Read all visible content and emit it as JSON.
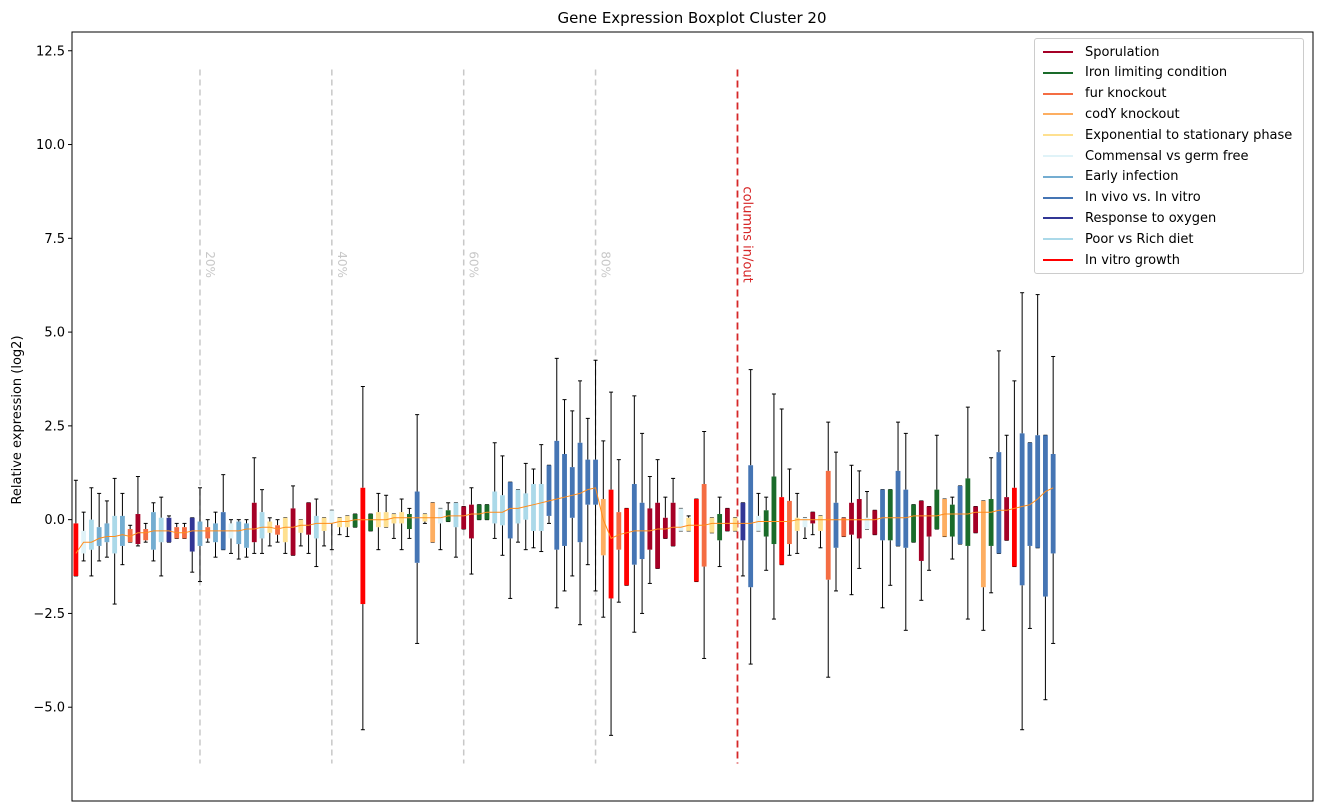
{
  "chart_data": {
    "type": "boxplot",
    "title": "Gene Expression Boxplot Cluster 20",
    "ylabel": "Relative expression (log2)",
    "xlabel": "",
    "ylim": [
      -7.5,
      13.0
    ],
    "yticks": [
      -5.0,
      -2.5,
      0.0,
      2.5,
      5.0,
      7.5,
      10.0,
      12.5
    ],
    "ytick_labels": [
      "−5.0",
      "−2.5",
      "0.0",
      "2.5",
      "5.0",
      "7.5",
      "10.0",
      "12.5"
    ],
    "num_columns": 160,
    "percentile_markers": [
      {
        "label": "20%",
        "column": 16.5
      },
      {
        "label": "40%",
        "column": 33.5
      },
      {
        "label": "60%",
        "column": 50.5
      },
      {
        "label": "80%",
        "column": 67.5
      }
    ],
    "inout_marker": {
      "label": "columns in/out",
      "column": 85.8
    },
    "marker_y_range": [
      -6.5,
      12.0
    ],
    "legend": [
      {
        "label": "Sporulation",
        "color": "#a50026"
      },
      {
        "label": "Iron limiting condition",
        "color": "#1a6b2a"
      },
      {
        "label": "fur knockout",
        "color": "#f46d43"
      },
      {
        "label": "codY knockout",
        "color": "#fdae61"
      },
      {
        "label": "Exponential to stationary phase",
        "color": "#fee090"
      },
      {
        "label": "Commensal vs germ free",
        "color": "#e0f3f8"
      },
      {
        "label": "Early infection",
        "color": "#74add1"
      },
      {
        "label": "In vivo vs. In vitro",
        "color": "#4575b4"
      },
      {
        "label": "Response to oxygen",
        "color": "#313695"
      },
      {
        "label": "Poor vs Rich diet",
        "color": "#abd9e9"
      },
      {
        "label": "In vitro growth",
        "color": "#ff0000"
      }
    ],
    "median_line_color": "#ff8c1a",
    "boxes": [
      {
        "cat": 10,
        "q1": -1.5,
        "q3": -0.1,
        "lo": -1.5,
        "hi": 1.05,
        "med": -0.9
      },
      {
        "cat": 5,
        "q1": -0.9,
        "q3": -0.3,
        "lo": -1.1,
        "hi": 0.2,
        "med": -0.6
      },
      {
        "cat": 9,
        "q1": -0.8,
        "q3": 0.0,
        "lo": -1.5,
        "hi": 0.85,
        "med": -0.6
      },
      {
        "cat": 6,
        "q1": -0.7,
        "q3": -0.2,
        "lo": -1.1,
        "hi": 0.7,
        "med": -0.5
      },
      {
        "cat": 6,
        "q1": -0.6,
        "q3": -0.1,
        "lo": -1.0,
        "hi": 0.5,
        "med": -0.45
      },
      {
        "cat": 9,
        "q1": -0.9,
        "q3": 0.1,
        "lo": -2.25,
        "hi": 1.1,
        "med": -0.45
      },
      {
        "cat": 6,
        "q1": -0.7,
        "q3": 0.1,
        "lo": -1.2,
        "hi": 0.7,
        "med": -0.4
      },
      {
        "cat": 2,
        "q1": -0.6,
        "q3": -0.25,
        "lo": -0.6,
        "hi": -0.15,
        "med": -0.45
      },
      {
        "cat": 0,
        "q1": -0.65,
        "q3": 0.15,
        "lo": -0.7,
        "hi": 1.15,
        "med": -0.35
      },
      {
        "cat": 2,
        "q1": -0.55,
        "q3": -0.25,
        "lo": -0.6,
        "hi": -0.1,
        "med": -0.35
      },
      {
        "cat": 6,
        "q1": -0.8,
        "q3": 0.2,
        "lo": -1.1,
        "hi": 0.45,
        "med": -0.3
      },
      {
        "cat": 9,
        "q1": -0.6,
        "q3": 0.05,
        "lo": -1.5,
        "hi": 0.6,
        "med": -0.3
      },
      {
        "cat": 8,
        "q1": -0.6,
        "q3": 0.05,
        "lo": -0.6,
        "hi": 0.1,
        "med": -0.3
      },
      {
        "cat": 2,
        "q1": -0.5,
        "q3": -0.2,
        "lo": -0.5,
        "hi": -0.1,
        "med": -0.35
      },
      {
        "cat": 2,
        "q1": -0.5,
        "q3": -0.2,
        "lo": -0.5,
        "hi": -0.1,
        "med": -0.35
      },
      {
        "cat": 8,
        "q1": -0.85,
        "q3": 0.05,
        "lo": -1.4,
        "hi": 0.05,
        "med": -0.3
      },
      {
        "cat": 6,
        "q1": -0.7,
        "q3": -0.05,
        "lo": -1.65,
        "hi": 0.85,
        "med": -0.3
      },
      {
        "cat": 2,
        "q1": -0.5,
        "q3": -0.2,
        "lo": -0.6,
        "hi": 0.0,
        "med": -0.3
      },
      {
        "cat": 6,
        "q1": -0.6,
        "q3": -0.1,
        "lo": -1.0,
        "hi": 0.2,
        "med": -0.3
      },
      {
        "cat": 7,
        "q1": -0.8,
        "q3": 0.2,
        "lo": -0.8,
        "hi": 1.2,
        "med": -0.3
      },
      {
        "cat": 5,
        "q1": -0.5,
        "q3": -0.1,
        "lo": -0.9,
        "hi": 0.0,
        "med": -0.3
      },
      {
        "cat": 6,
        "q1": -0.65,
        "q3": -0.05,
        "lo": -1.05,
        "hi": 0.0,
        "med": -0.3
      },
      {
        "cat": 6,
        "q1": -0.75,
        "q3": -0.1,
        "lo": -1.0,
        "hi": 0.0,
        "med": -0.25
      },
      {
        "cat": 0,
        "q1": -0.6,
        "q3": 0.45,
        "lo": -0.9,
        "hi": 1.65,
        "med": -0.25
      },
      {
        "cat": 9,
        "q1": -0.5,
        "q3": 0.2,
        "lo": -0.9,
        "hi": 0.8,
        "med": -0.2
      },
      {
        "cat": 4,
        "q1": -0.35,
        "q3": -0.05,
        "lo": -0.7,
        "hi": 0.05,
        "med": -0.2
      },
      {
        "cat": 2,
        "q1": -0.4,
        "q3": -0.15,
        "lo": -0.6,
        "hi": 0.0,
        "med": -0.25
      },
      {
        "cat": 4,
        "q1": -0.6,
        "q3": 0.05,
        "lo": -0.9,
        "hi": 0.05,
        "med": -0.2
      },
      {
        "cat": 0,
        "q1": -0.95,
        "q3": 0.3,
        "lo": -0.95,
        "hi": 0.9,
        "med": -0.2
      },
      {
        "cat": 4,
        "q1": -0.35,
        "q3": 0.0,
        "lo": -0.7,
        "hi": 0.0,
        "med": -0.15
      },
      {
        "cat": 0,
        "q1": -0.4,
        "q3": 0.45,
        "lo": -0.9,
        "hi": 0.45,
        "med": -0.15
      },
      {
        "cat": 9,
        "q1": -0.5,
        "q3": 0.1,
        "lo": -1.25,
        "hi": 0.55,
        "med": -0.1
      },
      {
        "cat": 4,
        "q1": -0.3,
        "q3": 0.05,
        "lo": -0.7,
        "hi": 0.05,
        "med": -0.1
      },
      {
        "cat": 5,
        "q1": -0.1,
        "q3": 0.25,
        "lo": -0.8,
        "hi": 0.25,
        "med": -0.1
      },
      {
        "cat": 4,
        "q1": -0.2,
        "q3": 0.05,
        "lo": -0.4,
        "hi": 0.05,
        "med": -0.05
      },
      {
        "cat": 4,
        "q1": -0.2,
        "q3": 0.1,
        "lo": -0.45,
        "hi": 0.1,
        "med": -0.05
      },
      {
        "cat": 1,
        "q1": -0.2,
        "q3": 0.15,
        "lo": -0.2,
        "hi": 0.15,
        "med": 0.0
      },
      {
        "cat": 10,
        "q1": -2.25,
        "q3": 0.85,
        "lo": -5.6,
        "hi": 3.55,
        "med": 0.0
      },
      {
        "cat": 1,
        "q1": -0.3,
        "q3": 0.15,
        "lo": -0.3,
        "hi": 0.15,
        "med": 0.0
      },
      {
        "cat": 4,
        "q1": -0.2,
        "q3": 0.2,
        "lo": -0.8,
        "hi": 0.7,
        "med": 0.0
      },
      {
        "cat": 4,
        "q1": -0.2,
        "q3": 0.2,
        "lo": -0.2,
        "hi": 0.65,
        "med": 0.0
      },
      {
        "cat": 4,
        "q1": -0.1,
        "q3": 0.15,
        "lo": -0.5,
        "hi": 0.15,
        "med": 0.05
      },
      {
        "cat": 4,
        "q1": -0.1,
        "q3": 0.2,
        "lo": -0.8,
        "hi": 0.55,
        "med": 0.05
      },
      {
        "cat": 1,
        "q1": -0.25,
        "q3": 0.15,
        "lo": -0.5,
        "hi": 0.3,
        "med": 0.05
      },
      {
        "cat": 7,
        "q1": -1.15,
        "q3": 0.75,
        "lo": -3.3,
        "hi": 2.8,
        "med": 0.05
      },
      {
        "cat": 4,
        "q1": -0.05,
        "q3": 0.15,
        "lo": -0.1,
        "hi": 0.15,
        "med": 0.05
      },
      {
        "cat": 3,
        "q1": -0.6,
        "q3": 0.45,
        "lo": -0.6,
        "hi": 0.45,
        "med": 0.05
      },
      {
        "cat": 5,
        "q1": -0.1,
        "q3": 0.3,
        "lo": -0.8,
        "hi": 0.3,
        "med": 0.05
      },
      {
        "cat": 1,
        "q1": -0.05,
        "q3": 0.25,
        "lo": -0.05,
        "hi": 0.45,
        "med": 0.1
      },
      {
        "cat": 9,
        "q1": -0.2,
        "q3": 0.45,
        "lo": -1.0,
        "hi": 0.45,
        "med": 0.1
      },
      {
        "cat": 0,
        "q1": -0.25,
        "q3": 0.35,
        "lo": -0.25,
        "hi": 0.35,
        "med": 0.1
      },
      {
        "cat": 0,
        "q1": -0.5,
        "q3": 0.4,
        "lo": -1.45,
        "hi": 0.85,
        "med": 0.15
      },
      {
        "cat": 1,
        "q1": 0.0,
        "q3": 0.4,
        "lo": 0.0,
        "hi": 0.4,
        "med": 0.15
      },
      {
        "cat": 1,
        "q1": 0.0,
        "q3": 0.4,
        "lo": 0.0,
        "hi": 0.4,
        "med": 0.2
      },
      {
        "cat": 9,
        "q1": -0.1,
        "q3": 0.75,
        "lo": -0.5,
        "hi": 2.05,
        "med": 0.2
      },
      {
        "cat": 9,
        "q1": -0.15,
        "q3": 0.65,
        "lo": -0.95,
        "hi": 1.7,
        "med": 0.2
      },
      {
        "cat": 7,
        "q1": -0.5,
        "q3": 1.0,
        "lo": -2.1,
        "hi": 1.0,
        "med": 0.3
      },
      {
        "cat": 9,
        "q1": -0.1,
        "q3": 0.8,
        "lo": -0.6,
        "hi": 0.8,
        "med": 0.3
      },
      {
        "cat": 9,
        "q1": 0.0,
        "q3": 0.7,
        "lo": -0.8,
        "hi": 1.5,
        "med": 0.35
      },
      {
        "cat": 9,
        "q1": -0.3,
        "q3": 0.95,
        "lo": -0.75,
        "hi": 1.35,
        "med": 0.4
      },
      {
        "cat": 9,
        "q1": -0.3,
        "q3": 0.95,
        "lo": -0.85,
        "hi": 2.0,
        "med": 0.45
      },
      {
        "cat": 7,
        "q1": 0.1,
        "q3": 1.45,
        "lo": -0.1,
        "hi": 1.45,
        "med": 0.5
      },
      {
        "cat": 7,
        "q1": -0.8,
        "q3": 2.1,
        "lo": -2.35,
        "hi": 4.3,
        "med": 0.55
      },
      {
        "cat": 7,
        "q1": -0.7,
        "q3": 1.75,
        "lo": -1.9,
        "hi": 3.2,
        "med": 0.6
      },
      {
        "cat": 7,
        "q1": 0.05,
        "q3": 1.4,
        "lo": -1.5,
        "hi": 2.9,
        "med": 0.65
      },
      {
        "cat": 7,
        "q1": -0.6,
        "q3": 2.05,
        "lo": -2.8,
        "hi": 3.7,
        "med": 0.7
      },
      {
        "cat": 7,
        "q1": 0.4,
        "q3": 1.6,
        "lo": -1.2,
        "hi": 2.7,
        "med": 0.8
      },
      {
        "cat": 7,
        "q1": 0.4,
        "q3": 1.6,
        "lo": -1.9,
        "hi": 4.25,
        "med": 0.85
      },
      {
        "cat": 3,
        "q1": -0.95,
        "q3": 0.55,
        "lo": -2.6,
        "hi": 2.1,
        "med": 0.0
      },
      {
        "cat": 10,
        "q1": -2.1,
        "q3": 0.8,
        "lo": -5.75,
        "hi": 3.4,
        "med": -0.5
      },
      {
        "cat": 2,
        "q1": -0.8,
        "q3": 0.2,
        "lo": -2.2,
        "hi": 1.6,
        "med": -0.4
      },
      {
        "cat": 10,
        "q1": -1.75,
        "q3": 0.3,
        "lo": -1.75,
        "hi": 0.3,
        "med": -0.35
      },
      {
        "cat": 7,
        "q1": -1.2,
        "q3": 0.95,
        "lo": -3.0,
        "hi": 3.3,
        "med": -0.3
      },
      {
        "cat": 7,
        "q1": -1.05,
        "q3": 0.45,
        "lo": -2.5,
        "hi": 2.3,
        "med": -0.3
      },
      {
        "cat": 0,
        "q1": -0.8,
        "q3": 0.3,
        "lo": -1.7,
        "hi": 1.15,
        "med": -0.3
      },
      {
        "cat": 0,
        "q1": -1.3,
        "q3": 0.45,
        "lo": -1.3,
        "hi": 1.6,
        "med": -0.25
      },
      {
        "cat": 0,
        "q1": -0.5,
        "q3": 0.05,
        "lo": -0.5,
        "hi": 0.6,
        "med": -0.25
      },
      {
        "cat": 0,
        "q1": -0.7,
        "q3": 0.45,
        "lo": -0.7,
        "hi": 1.1,
        "med": -0.2
      },
      {
        "cat": 5,
        "q1": -0.3,
        "q3": 0.3,
        "lo": -0.3,
        "hi": 0.3,
        "med": -0.2
      },
      {
        "cat": 4,
        "q1": -0.3,
        "q3": 0.05,
        "lo": -0.3,
        "hi": 0.1,
        "med": -0.15
      },
      {
        "cat": 10,
        "q1": -1.65,
        "q3": 0.55,
        "lo": -1.65,
        "hi": 0.55,
        "med": -0.15
      },
      {
        "cat": 2,
        "q1": -1.25,
        "q3": 0.95,
        "lo": -3.7,
        "hi": 2.35,
        "med": -0.15
      },
      {
        "cat": 4,
        "q1": -0.35,
        "q3": 0.05,
        "lo": -0.35,
        "hi": 0.05,
        "med": -0.1
      },
      {
        "cat": 1,
        "q1": -0.55,
        "q3": 0.15,
        "lo": -1.25,
        "hi": 0.6,
        "med": -0.1
      },
      {
        "cat": 0,
        "q1": -0.3,
        "q3": 0.3,
        "lo": -0.3,
        "hi": 0.3,
        "med": -0.1
      },
      {
        "cat": 4,
        "q1": -0.3,
        "q3": 0.05,
        "lo": -0.3,
        "hi": 0.05,
        "med": -0.1
      },
      {
        "cat": 8,
        "q1": -0.55,
        "q3": 0.45,
        "lo": -1.5,
        "hi": 0.45,
        "med": -0.1
      },
      {
        "cat": 7,
        "q1": -1.8,
        "q3": 1.45,
        "lo": -3.85,
        "hi": 4.0,
        "med": -0.1
      },
      {
        "cat": 5,
        "q1": -0.3,
        "q3": 0.1,
        "lo": -0.3,
        "hi": 0.7,
        "med": -0.05
      },
      {
        "cat": 1,
        "q1": -0.45,
        "q3": 0.25,
        "lo": -1.35,
        "hi": 0.6,
        "med": -0.05
      },
      {
        "cat": 1,
        "q1": -0.65,
        "q3": 1.15,
        "lo": -2.65,
        "hi": 3.35,
        "med": -0.05
      },
      {
        "cat": 10,
        "q1": -1.2,
        "q3": 0.6,
        "lo": -1.2,
        "hi": 2.95,
        "med": -0.05
      },
      {
        "cat": 2,
        "q1": -0.65,
        "q3": 0.5,
        "lo": -0.95,
        "hi": 1.35,
        "med": -0.05
      },
      {
        "cat": 4,
        "q1": -0.3,
        "q3": 0.05,
        "lo": -0.9,
        "hi": 0.7,
        "med": 0.0
      },
      {
        "cat": 5,
        "q1": -0.2,
        "q3": 0.05,
        "lo": -0.5,
        "hi": 0.05,
        "med": 0.0
      },
      {
        "cat": 0,
        "q1": -0.1,
        "q3": 0.2,
        "lo": -0.4,
        "hi": 0.2,
        "med": 0.0
      },
      {
        "cat": 4,
        "q1": -0.3,
        "q3": 0.1,
        "lo": -0.75,
        "hi": 0.1,
        "med": 0.0
      },
      {
        "cat": 2,
        "q1": -1.6,
        "q3": 1.3,
        "lo": -4.2,
        "hi": 2.6,
        "med": 0.0
      },
      {
        "cat": 7,
        "q1": -0.75,
        "q3": 0.45,
        "lo": -1.9,
        "hi": 1.8,
        "med": 0.0
      },
      {
        "cat": 2,
        "q1": -0.45,
        "q3": 0.05,
        "lo": -0.45,
        "hi": 0.05,
        "med": 0.0
      },
      {
        "cat": 0,
        "q1": -0.4,
        "q3": 0.45,
        "lo": -2.0,
        "hi": 1.45,
        "med": 0.0
      },
      {
        "cat": 0,
        "q1": -0.5,
        "q3": 0.55,
        "lo": -1.3,
        "hi": 1.3,
        "med": 0.0
      },
      {
        "cat": 5,
        "q1": -0.25,
        "q3": 0.05,
        "lo": -0.25,
        "hi": 0.75,
        "med": 0.0
      },
      {
        "cat": 0,
        "q1": -0.4,
        "q3": 0.25,
        "lo": -0.4,
        "hi": 0.25,
        "med": 0.0
      },
      {
        "cat": 7,
        "q1": -0.55,
        "q3": 0.8,
        "lo": -2.35,
        "hi": 0.8,
        "med": 0.05
      },
      {
        "cat": 1,
        "q1": -0.55,
        "q3": 0.8,
        "lo": -1.75,
        "hi": 0.8,
        "med": 0.05
      },
      {
        "cat": 7,
        "q1": -0.7,
        "q3": 1.3,
        "lo": -0.7,
        "hi": 2.6,
        "med": 0.05
      },
      {
        "cat": 7,
        "q1": -0.75,
        "q3": 0.8,
        "lo": -2.95,
        "hi": 2.3,
        "med": 0.05
      },
      {
        "cat": 1,
        "q1": -0.6,
        "q3": 0.4,
        "lo": -0.6,
        "hi": 0.4,
        "med": 0.1
      },
      {
        "cat": 0,
        "q1": -1.1,
        "q3": 0.5,
        "lo": -2.15,
        "hi": 0.5,
        "med": 0.1
      },
      {
        "cat": 0,
        "q1": -0.45,
        "q3": 0.35,
        "lo": -1.35,
        "hi": 0.35,
        "med": 0.1
      },
      {
        "cat": 1,
        "q1": -0.25,
        "q3": 0.8,
        "lo": -0.25,
        "hi": 2.25,
        "med": 0.1
      },
      {
        "cat": 3,
        "q1": -0.45,
        "q3": 0.55,
        "lo": -0.45,
        "hi": 0.55,
        "med": 0.15
      },
      {
        "cat": 1,
        "q1": -0.45,
        "q3": 0.4,
        "lo": -1.05,
        "hi": 0.6,
        "med": 0.15
      },
      {
        "cat": 7,
        "q1": -0.65,
        "q3": 0.9,
        "lo": -0.65,
        "hi": 0.9,
        "med": 0.15
      },
      {
        "cat": 1,
        "q1": -0.7,
        "q3": 1.1,
        "lo": -2.65,
        "hi": 3.0,
        "med": 0.15
      },
      {
        "cat": 0,
        "q1": -0.35,
        "q3": 0.35,
        "lo": -0.35,
        "hi": 0.35,
        "med": 0.2
      },
      {
        "cat": 3,
        "q1": -1.8,
        "q3": 0.5,
        "lo": -2.95,
        "hi": 0.5,
        "med": 0.2
      },
      {
        "cat": 1,
        "q1": -0.7,
        "q3": 0.55,
        "lo": -1.95,
        "hi": 1.65,
        "med": 0.2
      },
      {
        "cat": 7,
        "q1": -0.9,
        "q3": 1.8,
        "lo": -0.9,
        "hi": 4.5,
        "med": 0.25
      },
      {
        "cat": 0,
        "q1": -0.55,
        "q3": 0.6,
        "lo": -0.55,
        "hi": 2.25,
        "med": 0.25
      },
      {
        "cat": 10,
        "q1": -1.25,
        "q3": 0.85,
        "lo": -1.25,
        "hi": 3.7,
        "med": 0.3
      },
      {
        "cat": 7,
        "q1": -1.75,
        "q3": 2.3,
        "lo": -5.6,
        "hi": 6.05,
        "med": 0.35
      },
      {
        "cat": 7,
        "q1": -0.7,
        "q3": 2.05,
        "lo": -2.9,
        "hi": 2.05,
        "med": 0.4
      },
      {
        "cat": 7,
        "q1": -0.75,
        "q3": 2.25,
        "lo": -0.75,
        "hi": 6.0,
        "med": 0.55
      },
      {
        "cat": 7,
        "q1": -2.05,
        "q3": 2.25,
        "lo": -4.8,
        "hi": 2.25,
        "med": 0.75
      },
      {
        "cat": 7,
        "q1": -0.9,
        "q3": 1.75,
        "lo": -3.3,
        "hi": 4.35,
        "med": 0.85
      }
    ]
  }
}
